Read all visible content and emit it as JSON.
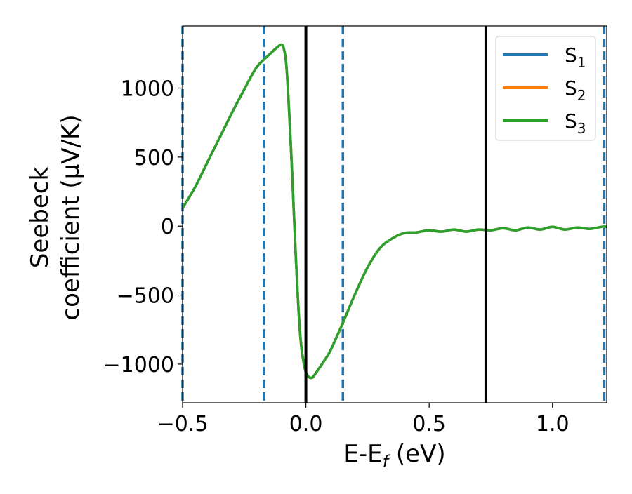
{
  "chart_data": {
    "type": "line",
    "title": "",
    "xlabel": "E-E",
    "xlabel_sub": "f",
    "xlabel_unit": " (eV)",
    "ylabel_line1": "Seebeck",
    "ylabel_line2": "coefficient  (μV/K)",
    "xlim": [
      -0.5,
      1.22
    ],
    "ylim": [
      -1280,
      1450
    ],
    "xticks": [
      -0.5,
      0.0,
      0.5,
      1.0
    ],
    "xtick_labels": [
      "−0.5",
      "0.0",
      "0.5",
      "1.0"
    ],
    "yticks": [
      -1000,
      -500,
      0,
      500,
      1000
    ],
    "ytick_labels": [
      "−1000",
      "−500",
      "0",
      "500",
      "1000"
    ],
    "legend_position": "top-right",
    "x": [
      -0.5,
      -0.45,
      -0.4,
      -0.35,
      -0.3,
      -0.25,
      -0.2,
      -0.15,
      -0.12,
      -0.1,
      -0.09,
      -0.08,
      -0.07,
      -0.06,
      -0.05,
      -0.04,
      -0.03,
      -0.02,
      -0.01,
      0.0,
      0.01,
      0.02,
      0.03,
      0.05,
      0.08,
      0.1,
      0.15,
      0.2,
      0.25,
      0.3,
      0.35,
      0.4,
      0.45,
      0.5,
      0.55,
      0.6,
      0.65,
      0.7,
      0.75,
      0.8,
      0.85,
      0.9,
      0.95,
      1.0,
      1.05,
      1.1,
      1.15,
      1.2,
      1.22
    ],
    "series": [
      {
        "name": "S1",
        "label_main": "S",
        "label_sub": "1",
        "color": "#1f77b4",
        "values": [
          130,
          280,
          460,
          640,
          820,
          990,
          1150,
          1240,
          1290,
          1315,
          1290,
          1180,
          900,
          550,
          150,
          -250,
          -600,
          -850,
          -980,
          -1060,
          -1090,
          -1100,
          -1090,
          -1040,
          -960,
          -900,
          -700,
          -490,
          -300,
          -160,
          -90,
          -50,
          -45,
          -30,
          -40,
          -25,
          -40,
          -25,
          -30,
          -15,
          -30,
          -10,
          -25,
          -5,
          -25,
          -10,
          -20,
          -5,
          -5
        ]
      },
      {
        "name": "S2",
        "label_main": "S",
        "label_sub": "2",
        "color": "#ff7f0e",
        "values": [
          130,
          280,
          460,
          640,
          820,
          990,
          1150,
          1240,
          1290,
          1315,
          1290,
          1180,
          900,
          550,
          150,
          -250,
          -600,
          -850,
          -980,
          -1060,
          -1090,
          -1100,
          -1090,
          -1040,
          -960,
          -900,
          -700,
          -490,
          -300,
          -160,
          -90,
          -50,
          -45,
          -30,
          -40,
          -25,
          -40,
          -25,
          -30,
          -15,
          -30,
          -10,
          -25,
          -5,
          -25,
          -10,
          -20,
          -5,
          -5
        ]
      },
      {
        "name": "S3",
        "label_main": "S",
        "label_sub": "3",
        "color": "#2ca02c",
        "values": [
          130,
          280,
          460,
          640,
          820,
          990,
          1150,
          1240,
          1290,
          1315,
          1290,
          1180,
          900,
          550,
          150,
          -250,
          -600,
          -850,
          -980,
          -1060,
          -1090,
          -1100,
          -1090,
          -1040,
          -960,
          -900,
          -700,
          -490,
          -300,
          -160,
          -90,
          -50,
          -45,
          -30,
          -40,
          -25,
          -40,
          -25,
          -30,
          -15,
          -30,
          -10,
          -25,
          -5,
          -25,
          -10,
          -20,
          -5,
          -5
        ]
      }
    ],
    "vlines_dashed": [
      -0.5,
      -0.17,
      0.15,
      1.21
    ],
    "vlines_dashed_color": "#1f77b4",
    "vlines_solid": [
      0.0,
      0.73
    ],
    "vlines_solid_color": "#000000"
  }
}
